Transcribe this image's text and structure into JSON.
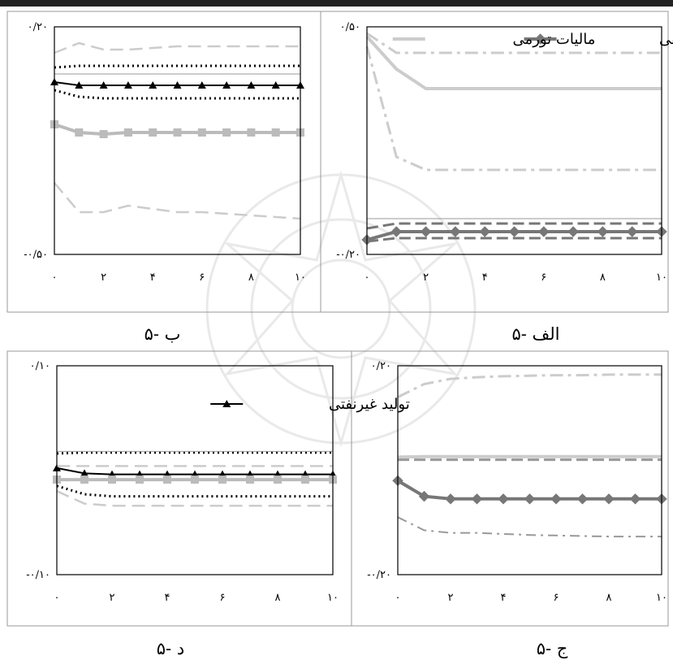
{
  "chart_data": [
    {
      "id": "p5a",
      "type": "line",
      "caption": "۵- الف",
      "ylim": [
        -0.2,
        0.5
      ],
      "y_tick_labels": [
        "۰/۵۰",
        "-۰/۲۰"
      ],
      "x": [
        0,
        1,
        2,
        3,
        4,
        5,
        6,
        7,
        8,
        9,
        10
      ],
      "x_tick_labels": [
        "۰",
        "۲",
        "۴",
        "۶",
        "۸",
        "۱۰"
      ],
      "x_tick_values": [
        0,
        2,
        4,
        6,
        8,
        10
      ],
      "legend": [
        {
          "series": "interest",
          "label": "نرخ بهره حقیقی"
        },
        {
          "series": "inflation_tax",
          "label": "مالیات تورمی"
        }
      ],
      "series": [
        {
          "key": "interest",
          "name": "نرخ بهره حقیقی",
          "style": "diamond",
          "color": "#777777",
          "values": [
            -0.155,
            -0.13,
            -0.13,
            -0.13,
            -0.13,
            -0.13,
            -0.13,
            -0.13,
            -0.13,
            -0.13,
            -0.13
          ]
        },
        {
          "key": "interest_upper",
          "style": "dash",
          "color": "#777777",
          "values": [
            -0.12,
            -0.105,
            -0.105,
            -0.105,
            -0.105,
            -0.105,
            -0.105,
            -0.105,
            -0.105,
            -0.105,
            -0.105
          ]
        },
        {
          "key": "interest_lower",
          "style": "dash",
          "color": "#777777",
          "values": [
            -0.16,
            -0.15,
            -0.15,
            -0.15,
            -0.15,
            -0.15,
            -0.15,
            -0.15,
            -0.15,
            -0.15,
            -0.15
          ]
        },
        {
          "key": "inflation_tax",
          "name": "مالیات تورمی",
          "style": "solid-light",
          "color": "#cccccc",
          "values": [
            0.47,
            0.37,
            0.31,
            0.31,
            0.31,
            0.31,
            0.31,
            0.31,
            0.31,
            0.31,
            0.31
          ]
        },
        {
          "key": "inflation_tax_upper",
          "style": "dashdot-light",
          "color": "#cccccc",
          "values": [
            0.48,
            0.42,
            0.42,
            0.42,
            0.42,
            0.42,
            0.42,
            0.42,
            0.42,
            0.42,
            0.42
          ]
        },
        {
          "key": "inflation_tax_lower",
          "style": "dashdot-light",
          "color": "#cccccc",
          "values": [
            0.44,
            0.1,
            0.06,
            0.06,
            0.06,
            0.06,
            0.06,
            0.06,
            0.06,
            0.06,
            0.06
          ]
        },
        {
          "key": "zero",
          "style": "thin",
          "color": "#999999",
          "values": [
            -0.09,
            -0.09,
            -0.09,
            -0.09,
            -0.09,
            -0.09,
            -0.09,
            -0.09,
            -0.09,
            -0.09,
            -0.09
          ]
        }
      ]
    },
    {
      "id": "p5b",
      "type": "line",
      "caption": "۵- ب",
      "ylim": [
        -0.5,
        0.2
      ],
      "y_tick_labels": [
        "۰/۲۰",
        "-۰/۵۰"
      ],
      "x": [
        0,
        1,
        2,
        3,
        4,
        5,
        6,
        7,
        8,
        9,
        10
      ],
      "x_tick_labels": [
        "۰",
        "۲",
        "۴",
        "۶",
        "۸",
        "۱۰"
      ],
      "x_tick_values": [
        0,
        2,
        4,
        6,
        8,
        10
      ],
      "legend": [],
      "series": [
        {
          "key": "output",
          "style": "triangle",
          "color": "#000000",
          "values": [
            0.03,
            0.02,
            0.02,
            0.02,
            0.02,
            0.02,
            0.02,
            0.02,
            0.02,
            0.02,
            0.02
          ]
        },
        {
          "key": "output_upper",
          "style": "dot",
          "color": "#000000",
          "values": [
            0.075,
            0.08,
            0.08,
            0.08,
            0.08,
            0.08,
            0.08,
            0.08,
            0.08,
            0.08,
            0.08
          ]
        },
        {
          "key": "output_lower",
          "style": "dot",
          "color": "#000000",
          "values": [
            0.005,
            -0.015,
            -0.02,
            -0.02,
            -0.02,
            -0.02,
            -0.02,
            -0.02,
            -0.02,
            -0.02,
            -0.02
          ]
        },
        {
          "key": "tax",
          "style": "square-light",
          "color": "#bbbbbb",
          "values": [
            -0.1,
            -0.125,
            -0.13,
            -0.125,
            -0.125,
            -0.125,
            -0.125,
            -0.125,
            -0.125,
            -0.125,
            -0.125
          ]
        },
        {
          "key": "tax_upper",
          "style": "dash-light",
          "color": "#cccccc",
          "values": [
            0.12,
            0.15,
            0.13,
            0.13,
            0.135,
            0.14,
            0.14,
            0.14,
            0.14,
            0.14,
            0.14
          ]
        },
        {
          "key": "tax_lower",
          "style": "dash-light",
          "color": "#cccccc",
          "values": [
            -0.28,
            -0.37,
            -0.37,
            -0.35,
            -0.36,
            -0.37,
            -0.37,
            -0.375,
            -0.38,
            -0.385,
            -0.39
          ]
        },
        {
          "key": "zero",
          "style": "thin",
          "color": "#999999",
          "values": [
            0.055,
            0.055,
            0.055,
            0.055,
            0.055,
            0.055,
            0.055,
            0.055,
            0.055,
            0.055,
            0.055
          ]
        }
      ]
    },
    {
      "id": "p5c",
      "type": "line",
      "caption": "۵- ج",
      "ylim": [
        -0.2,
        0.2
      ],
      "y_tick_labels": [
        "۰/۲۰",
        "-۰/۲۰"
      ],
      "x": [
        0,
        1,
        2,
        3,
        4,
        5,
        6,
        7,
        8,
        9,
        10
      ],
      "x_tick_labels": [
        "۰",
        "۲",
        "۴",
        "۶",
        "۸",
        "۱۰"
      ],
      "x_tick_values": [
        0,
        2,
        4,
        6,
        8,
        10
      ],
      "legend": [],
      "series": [
        {
          "key": "interest",
          "style": "diamond",
          "color": "#777777",
          "values": [
            -0.02,
            -0.05,
            -0.055,
            -0.055,
            -0.055,
            -0.055,
            -0.055,
            -0.055,
            -0.055,
            -0.055,
            -0.055
          ]
        },
        {
          "key": "interest_lower",
          "style": "dashdot-mid",
          "color": "#999999",
          "values": [
            -0.09,
            -0.115,
            -0.12,
            -0.12,
            -0.122,
            -0.124,
            -0.125,
            -0.126,
            -0.127,
            -0.127,
            -0.127
          ]
        },
        {
          "key": "inflation_tax",
          "style": "solid-light",
          "color": "#cccccc",
          "values": [
            0.025,
            0.026,
            0.026,
            0.026,
            0.026,
            0.026,
            0.026,
            0.026,
            0.026,
            0.026,
            0.026
          ]
        },
        {
          "key": "inflation_tax_upper",
          "style": "dashdot-light",
          "color": "#cccccc",
          "values": [
            0.14,
            0.165,
            0.175,
            0.178,
            0.18,
            0.181,
            0.182,
            0.182,
            0.183,
            0.183,
            0.183
          ]
        },
        {
          "key": "lower_dash",
          "style": "dash-mid",
          "color": "#999999",
          "values": [
            0.02,
            0.02,
            0.02,
            0.02,
            0.02,
            0.02,
            0.02,
            0.02,
            0.02,
            0.02,
            0.02
          ]
        }
      ]
    },
    {
      "id": "p5d",
      "type": "line",
      "caption": "۵- د",
      "ylim": [
        -0.1,
        0.1
      ],
      "y_tick_labels": [
        "۰/۱۰",
        "-۰/۱۰"
      ],
      "x": [
        0,
        1,
        2,
        3,
        4,
        5,
        6,
        7,
        8,
        9,
        10
      ],
      "x_tick_labels": [
        "۰",
        "۲",
        "۴",
        "۶",
        "۸",
        "۱۰"
      ],
      "x_tick_values": [
        0,
        2,
        4,
        6,
        8,
        10
      ],
      "legend": [
        {
          "series": "output",
          "label": "تولید غیرنفتی"
        }
      ],
      "series": [
        {
          "key": "output",
          "name": "تولید غیرنفتی",
          "style": "triangle",
          "color": "#000000",
          "values": [
            0.002,
            -0.003,
            -0.004,
            -0.004,
            -0.004,
            -0.004,
            -0.004,
            -0.004,
            -0.004,
            -0.004,
            -0.004
          ]
        },
        {
          "key": "output_upper",
          "style": "dot",
          "color": "#000000",
          "values": [
            0.016,
            0.017,
            0.017,
            0.017,
            0.017,
            0.017,
            0.017,
            0.017,
            0.017,
            0.017,
            0.017
          ]
        },
        {
          "key": "output_lower",
          "style": "dot",
          "color": "#000000",
          "values": [
            -0.015,
            -0.023,
            -0.025,
            -0.025,
            -0.025,
            -0.025,
            -0.025,
            -0.025,
            -0.025,
            -0.025,
            -0.025
          ]
        },
        {
          "key": "tax",
          "style": "square-light",
          "color": "#bbbbbb",
          "values": [
            -0.009,
            -0.009,
            -0.009,
            -0.009,
            -0.009,
            -0.009,
            -0.009,
            -0.009,
            -0.009,
            -0.009,
            -0.009
          ]
        },
        {
          "key": "tax_upper",
          "style": "dash-light",
          "color": "#cccccc",
          "values": [
            0.004,
            0.004,
            0.004,
            0.004,
            0.004,
            0.004,
            0.004,
            0.004,
            0.004,
            0.004,
            0.004
          ]
        },
        {
          "key": "tax_lower",
          "style": "dash-light",
          "color": "#cccccc",
          "values": [
            -0.02,
            -0.032,
            -0.034,
            -0.034,
            -0.034,
            -0.034,
            -0.034,
            -0.034,
            -0.034,
            -0.034,
            -0.034
          ]
        },
        {
          "key": "zero",
          "style": "thin",
          "color": "#999999",
          "values": [
            0.018,
            0.018,
            0.018,
            0.018,
            0.018,
            0.018,
            0.018,
            0.018,
            0.018,
            0.018,
            0.018
          ]
        }
      ]
    }
  ]
}
